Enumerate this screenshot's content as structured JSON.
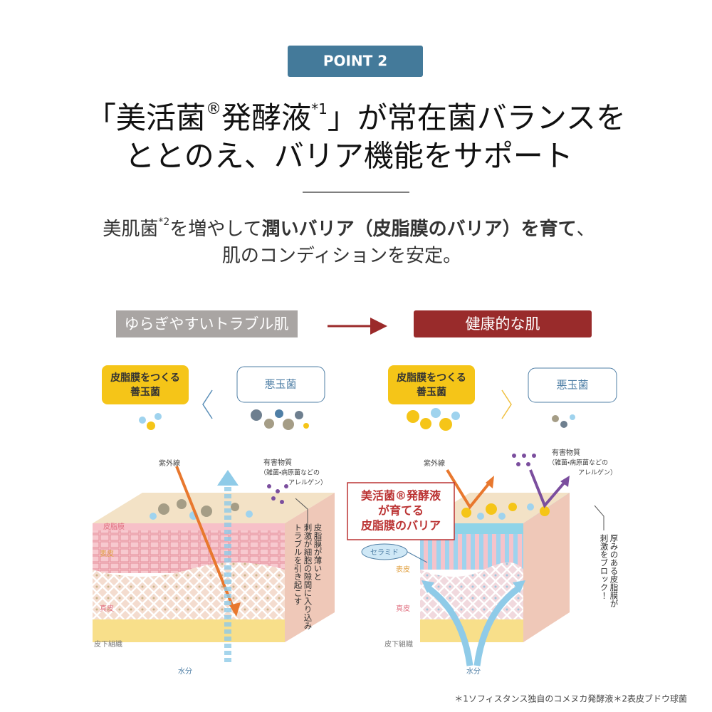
{
  "badge": "POINT 2",
  "headline": {
    "line1": [
      "「美活菌",
      "®",
      "発酵液",
      "*1",
      "」が常在菌バランスを"
    ],
    "line2": "ととのえ、バリア機能をサポート"
  },
  "subhead": {
    "line1": [
      "美肌菌",
      "*2",
      "を増やして",
      "潤いバリア（皮脂膜のバリア）を育て",
      "、"
    ],
    "line2": "肌のコンディションを安定。"
  },
  "before": {
    "label": "ゆらぎやすいトラブル肌",
    "good_bacteria": [
      "皮脂膜をつくる",
      "善玉菌"
    ],
    "bad_bacteria": "悪玉菌",
    "uv": "紫外線",
    "harmful": [
      "有害物質",
      "（雑菌・病原菌などの",
      "アレルゲン）"
    ],
    "layers": [
      "皮脂膜",
      "表皮",
      "真皮",
      "皮下組織"
    ],
    "water": "水分",
    "note": [
      "皮脂膜が薄いと",
      "刺激が細胞の隙間に入り込み",
      "トラブルを引き起こす"
    ]
  },
  "after": {
    "label": "健康的な肌",
    "good_bacteria": [
      "皮脂膜をつくる",
      "善玉菌"
    ],
    "bad_bacteria": "悪玉菌",
    "uv": "紫外線",
    "harmful": [
      "有害物質",
      "（雑菌・病原菌などの",
      "アレルゲン）"
    ],
    "callout": [
      "美活菌®発酵液",
      "が育てる",
      "皮脂膜のバリア"
    ],
    "ceramide": "セラミド",
    "layers": [
      "表皮",
      "真皮",
      "皮下組織"
    ],
    "water": "水分",
    "note": [
      "厚みのある皮脂膜が",
      "刺激をブロック！"
    ]
  },
  "footnote": "＊1ソフィスタンス独自のコメヌカ発酵液＊2表皮ブドウ球菌"
}
